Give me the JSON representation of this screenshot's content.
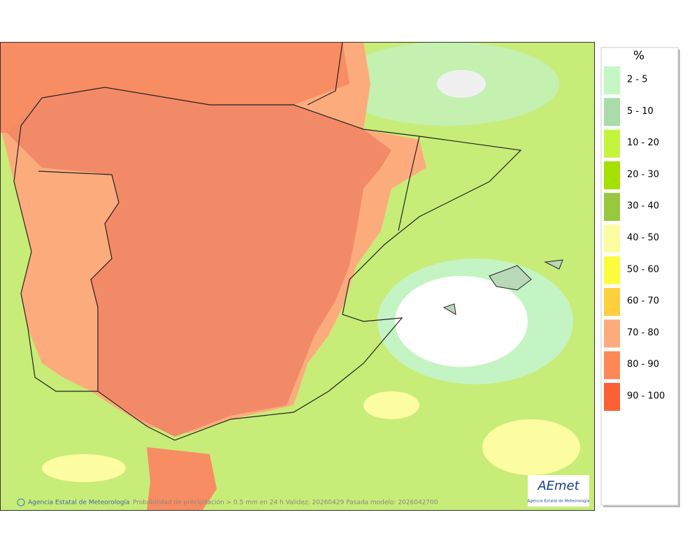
{
  "legend": {
    "title": "%",
    "items": [
      {
        "label": "2 - 5",
        "color": "#c4f7c4"
      },
      {
        "label": "5 - 10",
        "color": "#a8dca8"
      },
      {
        "label": "10 - 20",
        "color": "#c4f43c"
      },
      {
        "label": "20 - 30",
        "color": "#a4e000"
      },
      {
        "label": "30 - 40",
        "color": "#98c83c"
      },
      {
        "label": "40 - 50",
        "color": "#fcfca0"
      },
      {
        "label": "50 - 60",
        "color": "#fcfc3c"
      },
      {
        "label": "60 - 70",
        "color": "#fcd03c"
      },
      {
        "label": "70 - 80",
        "color": "#fcac7c"
      },
      {
        "label": "80 - 90",
        "color": "#fc8858"
      },
      {
        "label": "90 - 100",
        "color": "#fc6034"
      }
    ]
  },
  "footer": {
    "credit": "Agencia Estatal de Meteorología",
    "caption": "Probabilidad de precipitación > 0.5 mm en 24 h Validez: 20260429 Pasada modelo: 2026042700"
  },
  "logo": {
    "name": "AEmet",
    "subtitle": "Agencia Estatal de Meteorología"
  }
}
